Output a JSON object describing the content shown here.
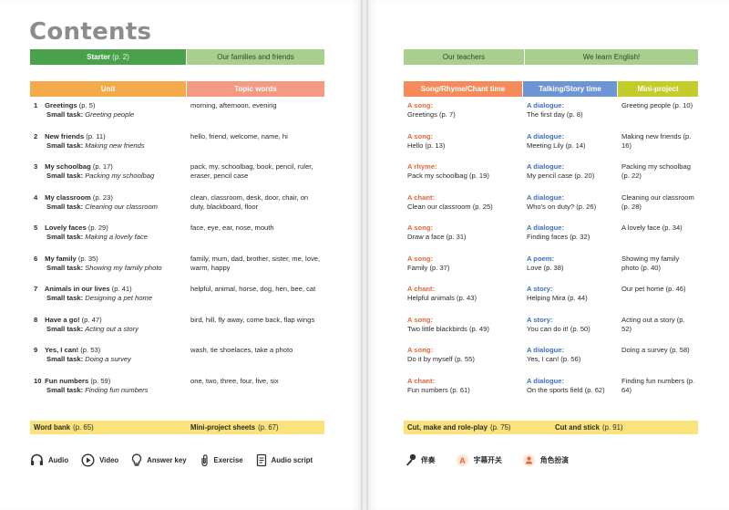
{
  "title": "Contents",
  "top_bar": {
    "starter_label": "Starter",
    "starter_page": "(p. 2)",
    "families": "Our families and friends",
    "teachers": "Our teachers",
    "english": "We learn English!"
  },
  "headers": {
    "unit": "Unit",
    "topic": "Topic words",
    "song": "Song/Rhyme/Chant time",
    "talking": "Talking/Story time",
    "mini": "Mini-project"
  },
  "rows": [
    {
      "num": "1",
      "unit": "Greetings",
      "page": "(p. 5)",
      "task_label": "Small task:",
      "task": "Greeting people",
      "topic": "morning, afternoon, evening",
      "song_type": "A song:",
      "song": "Greetings (p. 7)",
      "talk_type": "A dialogue:",
      "talk": "The first day (p. 8)",
      "mini": "Greeting people (p. 10)"
    },
    {
      "num": "2",
      "unit": "New friends",
      "page": "(p. 11)",
      "task_label": "Small task:",
      "task": "Making new friends",
      "topic": "hello, friend, welcome, name, hi",
      "song_type": "A song:",
      "song": "Hello (p. 13)",
      "talk_type": "A dialogue:",
      "talk": "Meeting Lily (p. 14)",
      "mini": "Making new friends (p. 16)"
    },
    {
      "num": "3",
      "unit": "My schoolbag",
      "page": "(p. 17)",
      "task_label": "Small task:",
      "task": "Packing my schoolbag",
      "topic": "pack, my, schoolbag, book, pencil, ruler, eraser, pencil case",
      "song_type": "A rhyme:",
      "song": "Pack my schoolbag (p. 19)",
      "talk_type": "A dialogue:",
      "talk": "My pencil case (p. 20)",
      "mini": "Packing my schoolbag (p. 22)"
    },
    {
      "num": "4",
      "unit": "My classroom",
      "page": "(p. 23)",
      "task_label": "Small task:",
      "task": "Cleaning our classroom",
      "topic": "clean, classroom, desk, door, chair, on duty, blackboard, floor",
      "song_type": "A chant:",
      "song": "Clean our classroom (p. 25)",
      "talk_type": "A dialogue:",
      "talk": "Who's on duty? (p. 26)",
      "mini": "Cleaning our classroom (p. 28)"
    },
    {
      "num": "5",
      "unit": "Lovely faces",
      "page": "(p. 29)",
      "task_label": "Small task:",
      "task": "Making a lovely face",
      "topic": "face, eye, ear, nose, mouth",
      "song_type": "A song:",
      "song": "Draw a face (p. 31)",
      "talk_type": "A dialogue:",
      "talk": "Finding faces (p. 32)",
      "mini": "A lovely face (p. 34)"
    },
    {
      "num": "6",
      "unit": "My family",
      "page": "(p. 35)",
      "task_label": "Small task:",
      "task": "Showing my family photo",
      "topic": "family, mum, dad, brother, sister, me, love, warm, happy",
      "song_type": "A song:",
      "song": "Family (p. 37)",
      "talk_type": "A poem:",
      "talk": "Love (p. 38)",
      "mini": "Showing my family photo (p. 40)"
    },
    {
      "num": "7",
      "unit": "Animals in our lives",
      "page": "(p. 41)",
      "task_label": "Small task:",
      "task": "Designing a pet home",
      "topic": "helpful, animal, horse, dog, hen, bee, cat",
      "song_type": "A chant:",
      "song": "Helpful animals (p. 43)",
      "talk_type": "A story:",
      "talk": "Helping Mira (p. 44)",
      "mini": "Our pet home (p. 46)"
    },
    {
      "num": "8",
      "unit": "Have a go!",
      "page": "(p. 47)",
      "task_label": "Small task:",
      "task": "Acting out a story",
      "topic": "bird, hill, fly away, come back, flap wings",
      "song_type": "A song:",
      "song": "Two little blackbirds (p. 49)",
      "talk_type": "A story:",
      "talk": "You can do it! (p. 50)",
      "mini": "Acting out a story (p. 52)"
    },
    {
      "num": "9",
      "unit": "Yes, I can!",
      "page": "(p. 53)",
      "task_label": "Small task:",
      "task": "Doing a survey",
      "topic": "wash, tie shoelaces, take a photo",
      "song_type": "A song:",
      "song": "Do it by myself (p. 55)",
      "talk_type": "A dialogue:",
      "talk": "Yes, I can! (p. 56)",
      "mini": "Doing a survey (p. 58)"
    },
    {
      "num": "10",
      "unit": "Fun numbers",
      "page": "(p. 59)",
      "task_label": "Small task:",
      "task": "Finding fun numbers",
      "topic": "one, two, three, four, five, six",
      "song_type": "A chant:",
      "song": "Fun numbers (p. 61)",
      "talk_type": "A dialogue:",
      "talk": "On the sports field (p. 62)",
      "mini": "Finding fun numbers (p. 64)"
    }
  ],
  "bottom_bar": {
    "word_bank": "Word bank",
    "word_bank_page": "(p. 65)",
    "mini_sheets": "Mini-project sheets",
    "mini_sheets_page": "(p. 67)",
    "cut_role": "Cut, make and role-play",
    "cut_role_page": "(p. 75)",
    "cut_stick": "Cut and stick",
    "cut_stick_page": "(p. 91)"
  },
  "legend": {
    "audio": "Audio",
    "video": "Video",
    "answer_key": "Answer key",
    "exercise": "Exercise",
    "audio_script": "Audio script",
    "accompaniment": "伴奏",
    "subtitle_switch": "字幕开关",
    "role_play": "角色扮演"
  }
}
